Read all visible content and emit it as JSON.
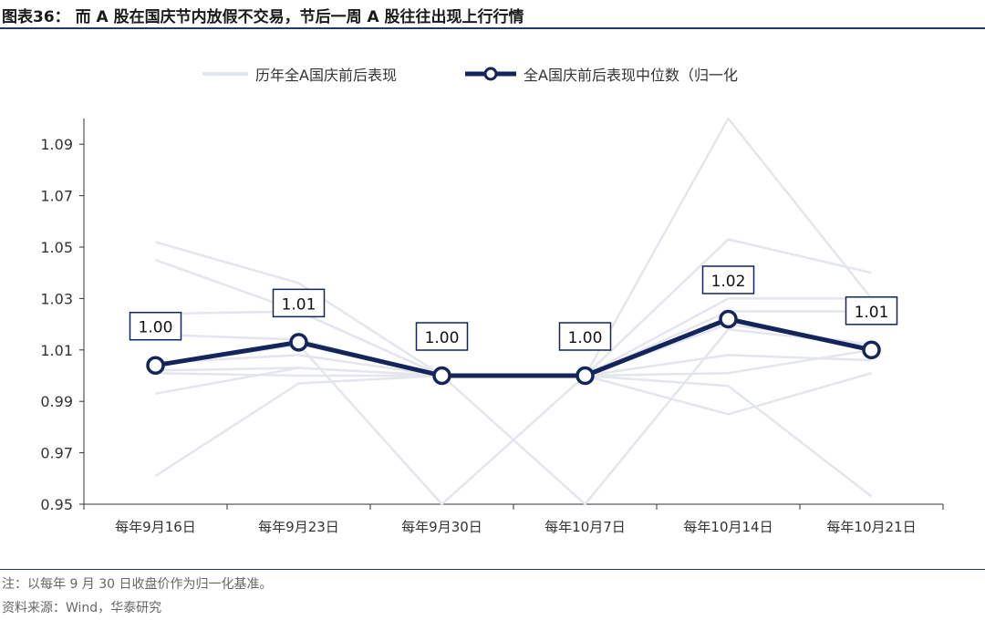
{
  "header": {
    "title": "图表36：  而 A 股在国庆节内放假不交易，节后一周 A 股往往出现上行行情"
  },
  "footer": {
    "note": "注：以每年 9 月 30 日收盘价作为归一化基准。",
    "source": "资料来源：Wind，华泰研究"
  },
  "chart_data": {
    "type": "line",
    "categories": [
      "每年9月16日",
      "每年9月23日",
      "每年9月30日",
      "每年10月7日",
      "每年10月14日",
      "每年10月21日"
    ],
    "ylim": [
      0.95,
      1.1
    ],
    "yticks": [
      "1.09",
      "1.07",
      "1.05",
      "1.03",
      "1.01",
      "0.99",
      "0.97",
      "0.95"
    ],
    "ytick_values": [
      1.09,
      1.07,
      1.05,
      1.03,
      1.01,
      0.99,
      0.97,
      0.95
    ],
    "legend": [
      {
        "name": "历年全A国庆前后表现",
        "color": "#e3e6ec"
      },
      {
        "name": "全A国庆前后表现中位数（归一化",
        "color": "#13255a"
      }
    ],
    "series": [
      {
        "name": "历年全A国庆前后表现",
        "values": [
          1.052,
          1.036,
          1.0,
          1.0,
          1.053,
          1.04
        ]
      },
      {
        "name": "历年全A国庆前后表现",
        "values": [
          1.045,
          1.025,
          1.0,
          1.0,
          1.03,
          1.03
        ]
      },
      {
        "name": "历年全A国庆前后表现",
        "values": [
          1.024,
          1.025,
          1.0,
          1.0,
          1.025,
          1.025
        ]
      },
      {
        "name": "历年全A国庆前后表现",
        "values": [
          1.016,
          1.014,
          1.0,
          1.0,
          1.02,
          1.012
        ]
      },
      {
        "name": "历年全A国庆前后表现",
        "values": [
          1.005,
          1.008,
          1.0,
          1.0,
          1.001,
          1.01
        ]
      },
      {
        "name": "历年全A国庆前后表现",
        "values": [
          1.001,
          1.0,
          1.0,
          1.0,
          0.996,
          0.953
        ]
      },
      {
        "name": "历年全A国庆前后表现",
        "values": [
          0.993,
          1.003,
          1.0,
          1.0,
          0.985,
          1.001
        ]
      },
      {
        "name": "历年全A国庆前后表现",
        "values": [
          0.961,
          0.997,
          1.0,
          1.0,
          1.1,
          1.03
        ]
      },
      {
        "name": "历年全A国庆前后表现",
        "values": [
          1.002,
          1.003,
          1.0,
          0.95,
          1.018,
          1.012
        ]
      },
      {
        "name": "历年全A国庆前后表现",
        "values": [
          1.004,
          1.012,
          0.95,
          1.0,
          1.008,
          1.006
        ]
      }
    ],
    "median": {
      "name": "全A国庆前后表现中位数（归一化",
      "values": [
        1.004,
        1.013,
        1.0,
        1.0,
        1.022,
        1.01
      ],
      "labels": [
        "1.00",
        "1.01",
        "1.00",
        "1.00",
        "1.02",
        "1.01"
      ],
      "color": "#13255a"
    },
    "grid": false
  }
}
